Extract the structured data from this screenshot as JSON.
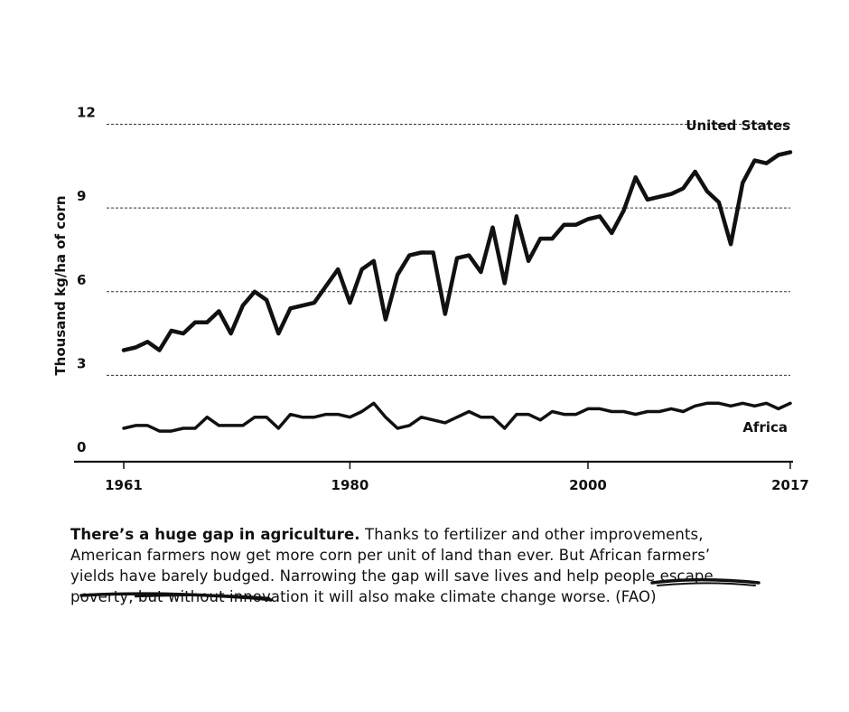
{
  "chart_data": {
    "type": "line",
    "title": "",
    "xlabel": "",
    "ylabel": "Thousand kg/ha of corn",
    "xlim": [
      1961,
      2017
    ],
    "ylim": [
      0,
      12
    ],
    "yticks": [
      0,
      3,
      6,
      9,
      12
    ],
    "xticks": [
      1961,
      1980,
      2000,
      2017
    ],
    "grid": "horizontal-dashed",
    "series": [
      {
        "name": "United States",
        "x": [
          1961,
          1962,
          1963,
          1964,
          1965,
          1966,
          1967,
          1968,
          1969,
          1970,
          1971,
          1972,
          1973,
          1974,
          1975,
          1976,
          1977,
          1978,
          1979,
          1980,
          1981,
          1982,
          1983,
          1984,
          1985,
          1986,
          1987,
          1988,
          1989,
          1990,
          1991,
          1992,
          1993,
          1994,
          1995,
          1996,
          1997,
          1998,
          1999,
          2000,
          2001,
          2002,
          2003,
          2004,
          2005,
          2006,
          2007,
          2008,
          2009,
          2010,
          2011,
          2012,
          2013,
          2014,
          2015,
          2016,
          2017
        ],
        "values": [
          3.9,
          4.0,
          4.2,
          3.9,
          4.6,
          4.5,
          4.9,
          4.9,
          5.3,
          4.5,
          5.5,
          6.0,
          5.7,
          4.5,
          5.4,
          5.5,
          5.6,
          6.2,
          6.8,
          5.6,
          6.8,
          7.1,
          5.0,
          6.6,
          7.3,
          7.4,
          7.4,
          5.2,
          7.2,
          7.3,
          6.7,
          8.3,
          6.3,
          8.7,
          7.1,
          7.9,
          7.9,
          8.4,
          8.4,
          8.6,
          8.7,
          8.1,
          8.9,
          10.1,
          9.3,
          9.4,
          9.5,
          9.7,
          10.3,
          9.6,
          9.2,
          7.7,
          9.9,
          10.7,
          10.6,
          10.9,
          11.0
        ]
      },
      {
        "name": "Africa",
        "x": [
          1961,
          1962,
          1963,
          1964,
          1965,
          1966,
          1967,
          1968,
          1969,
          1970,
          1971,
          1972,
          1973,
          1974,
          1975,
          1976,
          1977,
          1978,
          1979,
          1980,
          1981,
          1982,
          1983,
          1984,
          1985,
          1986,
          1987,
          1988,
          1989,
          1990,
          1991,
          1992,
          1993,
          1994,
          1995,
          1996,
          1997,
          1998,
          1999,
          2000,
          2001,
          2002,
          2003,
          2004,
          2005,
          2006,
          2007,
          2008,
          2009,
          2010,
          2011,
          2012,
          2013,
          2014,
          2015,
          2016,
          2017
        ],
        "values": [
          1.1,
          1.2,
          1.2,
          1.0,
          1.0,
          1.1,
          1.1,
          1.5,
          1.2,
          1.2,
          1.2,
          1.5,
          1.5,
          1.1,
          1.6,
          1.5,
          1.5,
          1.6,
          1.6,
          1.5,
          1.7,
          2.0,
          1.5,
          1.1,
          1.2,
          1.5,
          1.4,
          1.3,
          1.5,
          1.7,
          1.5,
          1.5,
          1.1,
          1.6,
          1.6,
          1.4,
          1.7,
          1.6,
          1.6,
          1.8,
          1.8,
          1.7,
          1.7,
          1.6,
          1.7,
          1.7,
          1.8,
          1.7,
          1.9,
          2.0,
          2.0,
          1.9,
          2.0,
          1.9,
          2.0,
          1.8,
          2.0
        ]
      }
    ]
  },
  "caption": {
    "lead": "There’s a huge gap in agriculture.",
    "line1_rest": " Thanks to fertilizer and other improvements,",
    "line2": "American farmers now get more corn per unit of land than ever. But African farmers’",
    "line3": "yields have barely budged. Narrowing the gap will save lives and help people escape",
    "line4": "poverty, but without innovation it will also make climate change worse. (FAO)"
  }
}
